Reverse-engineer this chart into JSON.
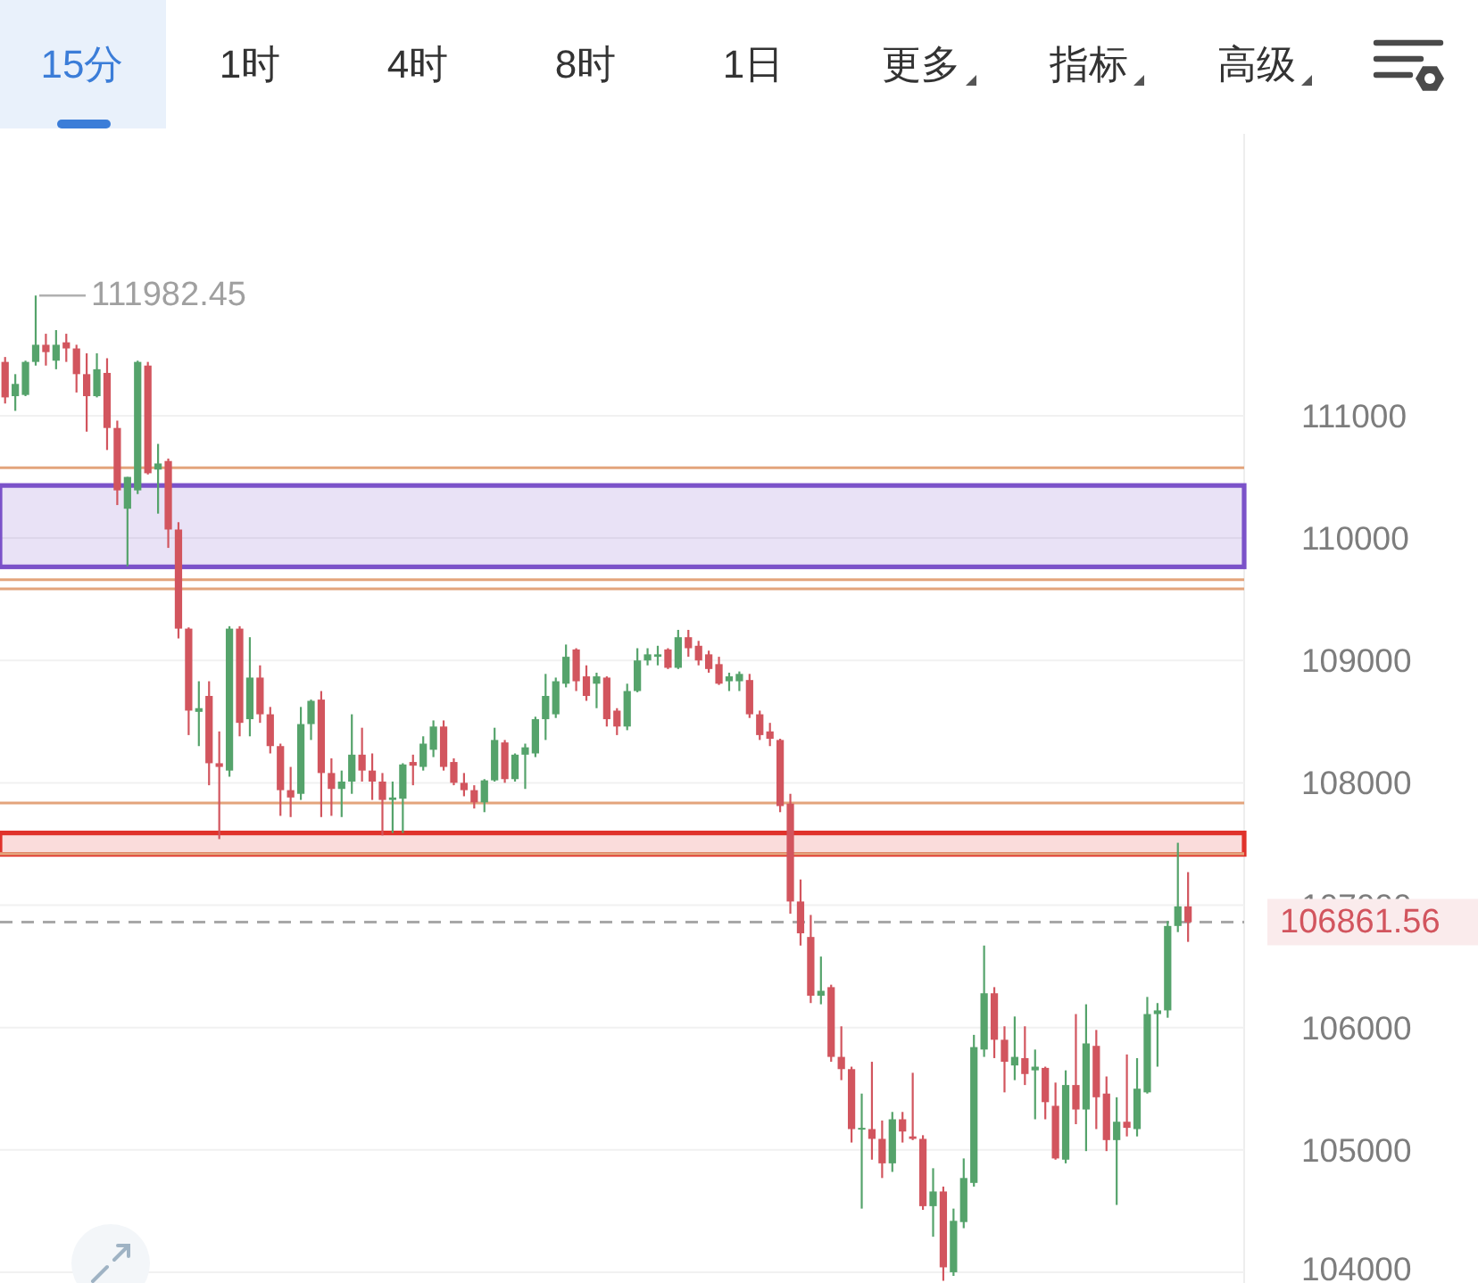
{
  "chart_data": {
    "type": "candlestick",
    "annotations": [
      "15分",
      "1时",
      "4时",
      "8时",
      "1日",
      "更多",
      "指标",
      "高级",
      "111982.45"
    ],
    "categories": [
      null,
      null,
      null,
      null,
      null,
      null,
      null,
      null,
      null,
      null,
      null,
      null,
      null,
      null,
      null,
      null,
      null,
      null,
      null,
      null,
      null,
      null,
      null,
      null,
      null,
      null,
      null,
      null,
      null,
      null,
      null,
      null,
      null,
      null,
      null,
      null,
      null,
      null,
      null,
      null,
      null,
      null,
      null,
      null,
      null,
      null,
      null,
      null,
      null,
      null,
      null,
      null,
      null,
      null,
      null,
      null,
      null,
      null,
      null,
      null,
      null,
      null,
      null,
      null,
      null,
      null,
      null,
      null,
      null,
      null,
      null,
      null,
      null,
      null,
      null,
      null,
      null,
      null,
      null,
      null,
      null,
      null,
      null,
      null,
      null,
      null,
      null,
      null,
      null,
      null,
      null,
      null,
      null,
      null,
      null,
      null,
      null,
      null,
      null,
      null,
      null,
      null,
      null,
      null,
      null,
      null,
      null,
      null,
      null,
      null,
      null,
      null,
      null,
      null,
      null,
      null,
      null,
      null,
      null,
      null,
      null,
      null
    ],
    "ohlc": [
      [
        111440,
        111480,
        111100,
        111150
      ],
      [
        111160,
        111340,
        111040,
        111260
      ],
      [
        111170,
        111450,
        111160,
        111440
      ],
      [
        111440,
        111982.45,
        111410,
        111580
      ],
      [
        111580,
        111670,
        111410,
        111520
      ],
      [
        111450,
        111700,
        111380,
        111580
      ],
      [
        111600,
        111670,
        111440,
        111550
      ],
      [
        111550,
        111580,
        111190,
        111340
      ],
      [
        111340,
        111510,
        110870,
        111160
      ],
      [
        111160,
        111510,
        111150,
        111380
      ],
      [
        111350,
        111470,
        110720,
        110900
      ],
      [
        110900,
        110960,
        110270,
        110390
      ],
      [
        110240,
        110500,
        109770,
        110500
      ],
      [
        110390,
        111450,
        110360,
        111440
      ],
      [
        111410,
        111440,
        110520,
        110530
      ],
      [
        110560,
        110770,
        110200,
        110610
      ],
      [
        110630,
        110650,
        109920,
        110070
      ],
      [
        110070,
        110130,
        109180,
        109260
      ],
      [
        109260,
        109270,
        108390,
        108590
      ],
      [
        108580,
        108830,
        108300,
        108610
      ],
      [
        108710,
        108830,
        107980,
        108160
      ],
      [
        108160,
        108420,
        107540,
        108130
      ],
      [
        108100,
        109280,
        108050,
        109260
      ],
      [
        109260,
        109280,
        108380,
        108490
      ],
      [
        108520,
        109190,
        108380,
        108860
      ],
      [
        108860,
        108960,
        108490,
        108560
      ],
      [
        108560,
        108620,
        108240,
        108300
      ],
      [
        108300,
        108320,
        107730,
        107940
      ],
      [
        107940,
        108130,
        107720,
        107880
      ],
      [
        107910,
        108620,
        107860,
        108480
      ],
      [
        108480,
        108680,
        108350,
        108670
      ],
      [
        108680,
        108750,
        107720,
        108080
      ],
      [
        108080,
        108200,
        107730,
        107950
      ],
      [
        107950,
        108100,
        107720,
        108010
      ],
      [
        108010,
        108560,
        107910,
        108230
      ],
      [
        108230,
        108450,
        108010,
        108100
      ],
      [
        108100,
        108240,
        107860,
        108010
      ],
      [
        108010,
        108080,
        107570,
        107860
      ],
      [
        107860,
        108010,
        107590,
        107880
      ],
      [
        107870,
        108160,
        107590,
        108150
      ],
      [
        108170,
        108230,
        107980,
        108140
      ],
      [
        108130,
        108380,
        108100,
        108320
      ],
      [
        108270,
        108510,
        108210,
        108460
      ],
      [
        108460,
        108510,
        108100,
        108130
      ],
      [
        108170,
        108200,
        107980,
        108000
      ],
      [
        108000,
        108080,
        107890,
        107940
      ],
      [
        107940,
        107980,
        107790,
        107840
      ],
      [
        107840,
        108030,
        107760,
        108020
      ],
      [
        108020,
        108450,
        108010,
        108350
      ],
      [
        108330,
        108350,
        108000,
        108030
      ],
      [
        108030,
        108240,
        108010,
        108230
      ],
      [
        108230,
        108320,
        107950,
        108290
      ],
      [
        108240,
        108540,
        108210,
        108520
      ],
      [
        108520,
        108890,
        108350,
        108710
      ],
      [
        108560,
        108860,
        108530,
        108830
      ],
      [
        108810,
        109130,
        108780,
        109030
      ],
      [
        109090,
        109100,
        108750,
        108830
      ],
      [
        108870,
        108960,
        108670,
        108710
      ],
      [
        108810,
        108900,
        108610,
        108870
      ],
      [
        108860,
        108870,
        108460,
        108520
      ],
      [
        108590,
        108610,
        108390,
        108460
      ],
      [
        108460,
        108810,
        108430,
        108750
      ],
      [
        108750,
        109100,
        108740,
        109000
      ],
      [
        109000,
        109100,
        108960,
        109050
      ],
      [
        109030,
        109120,
        108960,
        109050
      ],
      [
        109090,
        109100,
        108930,
        108940
      ],
      [
        108940,
        109250,
        108930,
        109190
      ],
      [
        109190,
        109250,
        109030,
        109100
      ],
      [
        109120,
        109160,
        108960,
        109000
      ],
      [
        109050,
        109080,
        108900,
        108930
      ],
      [
        108970,
        109030,
        108800,
        108810
      ],
      [
        108830,
        108900,
        108750,
        108870
      ],
      [
        108830,
        108910,
        108750,
        108890
      ],
      [
        108840,
        108890,
        108530,
        108560
      ],
      [
        108560,
        108590,
        108350,
        108390
      ],
      [
        108420,
        108490,
        108300,
        108360
      ],
      [
        108350,
        108360,
        107760,
        107810
      ],
      [
        107830,
        107910,
        106930,
        107030
      ],
      [
        107030,
        107210,
        106670,
        106770
      ],
      [
        106740,
        106920,
        106200,
        106260
      ],
      [
        106260,
        106580,
        106190,
        106300
      ],
      [
        106330,
        106350,
        105720,
        105760
      ],
      [
        105760,
        106010,
        105570,
        105660
      ],
      [
        105660,
        105680,
        105060,
        105170
      ],
      [
        105170,
        105460,
        104520,
        105180
      ],
      [
        105170,
        105720,
        104920,
        105090
      ],
      [
        105090,
        105240,
        104770,
        104890
      ],
      [
        104890,
        105310,
        104820,
        105250
      ],
      [
        105250,
        105310,
        105060,
        105150
      ],
      [
        105110,
        105630,
        105080,
        105090
      ],
      [
        105090,
        105120,
        104510,
        104540
      ],
      [
        104540,
        104850,
        104290,
        104660
      ],
      [
        104660,
        104700,
        103930,
        104040
      ],
      [
        104000,
        104520,
        103970,
        104420
      ],
      [
        104410,
        104930,
        104360,
        104770
      ],
      [
        104730,
        105940,
        104700,
        105840
      ],
      [
        105820,
        106670,
        105760,
        106280
      ],
      [
        106280,
        106330,
        105750,
        105900
      ],
      [
        105900,
        106010,
        105470,
        105720
      ],
      [
        105690,
        106090,
        105570,
        105760
      ],
      [
        105750,
        106010,
        105530,
        105620
      ],
      [
        105650,
        105820,
        105250,
        105680
      ],
      [
        105670,
        105680,
        105250,
        105390
      ],
      [
        105360,
        105550,
        104920,
        104930
      ],
      [
        104920,
        105650,
        104890,
        105530
      ],
      [
        105530,
        106110,
        105210,
        105330
      ],
      [
        105330,
        106190,
        104990,
        105870
      ],
      [
        105850,
        105980,
        105170,
        105430
      ],
      [
        105460,
        105600,
        104990,
        105080
      ],
      [
        105080,
        105430,
        104550,
        105230
      ],
      [
        105230,
        105780,
        105110,
        105180
      ],
      [
        105170,
        105750,
        105110,
        105500
      ],
      [
        105470,
        106250,
        105460,
        106110
      ],
      [
        106110,
        106200,
        105680,
        106140
      ],
      [
        106140,
        106870,
        106080,
        106830
      ],
      [
        106830,
        107510,
        106780,
        106990
      ],
      [
        106990,
        107270,
        106700,
        106860
      ],
      null,
      null,
      null,
      null,
      null
    ],
    "colors": [
      "#d2555e",
      "#55a36b",
      "#55a36b",
      "#55a36b",
      "#d2555e",
      "#55a36b",
      "#d2555e",
      "#d2555e",
      "#d2555e",
      "#55a36b",
      "#d2555e",
      "#d2555e",
      "#55a36b",
      "#55a36b",
      "#d2555e",
      "#55a36b",
      "#d2555e",
      "#d2555e",
      "#d2555e",
      "#55a36b",
      "#d2555e",
      "#d2555e",
      "#55a36b",
      "#d2555e",
      "#55a36b",
      "#d2555e",
      "#d2555e",
      "#d2555e",
      "#d2555e",
      "#55a36b",
      "#55a36b",
      "#d2555e",
      "#d2555e",
      "#55a36b",
      "#55a36b",
      "#d2555e",
      "#d2555e",
      "#d2555e",
      "#55a36b",
      "#55a36b",
      "#d2555e",
      "#55a36b",
      "#55a36b",
      "#d2555e",
      "#d2555e",
      "#d2555e",
      "#d2555e",
      "#55a36b",
      "#55a36b",
      "#d2555e",
      "#55a36b",
      "#55a36b",
      "#55a36b",
      "#55a36b",
      "#55a36b",
      "#55a36b",
      "#d2555e",
      "#d2555e",
      "#55a36b",
      "#d2555e",
      "#d2555e",
      "#55a36b",
      "#55a36b",
      "#55a36b",
      "#55a36b",
      "#d2555e",
      "#55a36b",
      "#d2555e",
      "#d2555e",
      "#d2555e",
      "#d2555e",
      "#55a36b",
      "#55a36b",
      "#d2555e",
      "#d2555e",
      "#d2555e",
      "#d2555e",
      "#d2555e",
      "#d2555e",
      "#d2555e",
      "#55a36b",
      "#d2555e",
      "#d2555e",
      "#d2555e",
      "#55a36b",
      "#d2555e",
      "#d2555e",
      "#55a36b",
      "#d2555e",
      "#d2555e",
      "#d2555e",
      "#55a36b",
      "#d2555e",
      "#55a36b",
      "#55a36b",
      "#55a36b",
      "#55a36b",
      "#d2555e",
      "#d2555e",
      "#55a36b",
      "#d2555e",
      "#55a36b",
      "#d2555e",
      "#d2555e",
      "#55a36b",
      "#d2555e",
      "#55a36b",
      "#d2555e",
      "#d2555e",
      "#55a36b",
      "#d2555e",
      "#55a36b",
      "#55a36b",
      "#55a36b",
      "#55a36b",
      "#55a36b",
      "#d2555e",
      null,
      null,
      null,
      null,
      null
    ],
    "ylim": [
      103912,
      113304
    ],
    "yticks": [
      104000,
      105000,
      106000,
      107000,
      108000,
      109000,
      110000,
      111000
    ],
    "tick_labels": "y",
    "grid": "y",
    "bands": [
      {
        "axis": "y",
        "from": 109765,
        "to": 110430,
        "color": "#7b52c9"
      },
      {
        "axis": "y",
        "from": 107415,
        "to": 107590,
        "color": "#e0322b"
      }
    ],
    "ref_lines": [
      {
        "axis": "y",
        "value": 110575,
        "color": "#e3a47c"
      },
      {
        "axis": "y",
        "value": 109660,
        "color": "#e3a47c"
      },
      {
        "axis": "y",
        "value": 109585,
        "color": "#e3a47c"
      },
      {
        "axis": "y",
        "value": 107835,
        "color": "#e3a47c"
      },
      {
        "axis": "y",
        "value": 107420,
        "color": "#e3a47c"
      },
      {
        "axis": "y",
        "value": 106861.56,
        "label": "106861.56",
        "color": "#a8a8a8",
        "line_style": "dashed"
      }
    ]
  }
}
